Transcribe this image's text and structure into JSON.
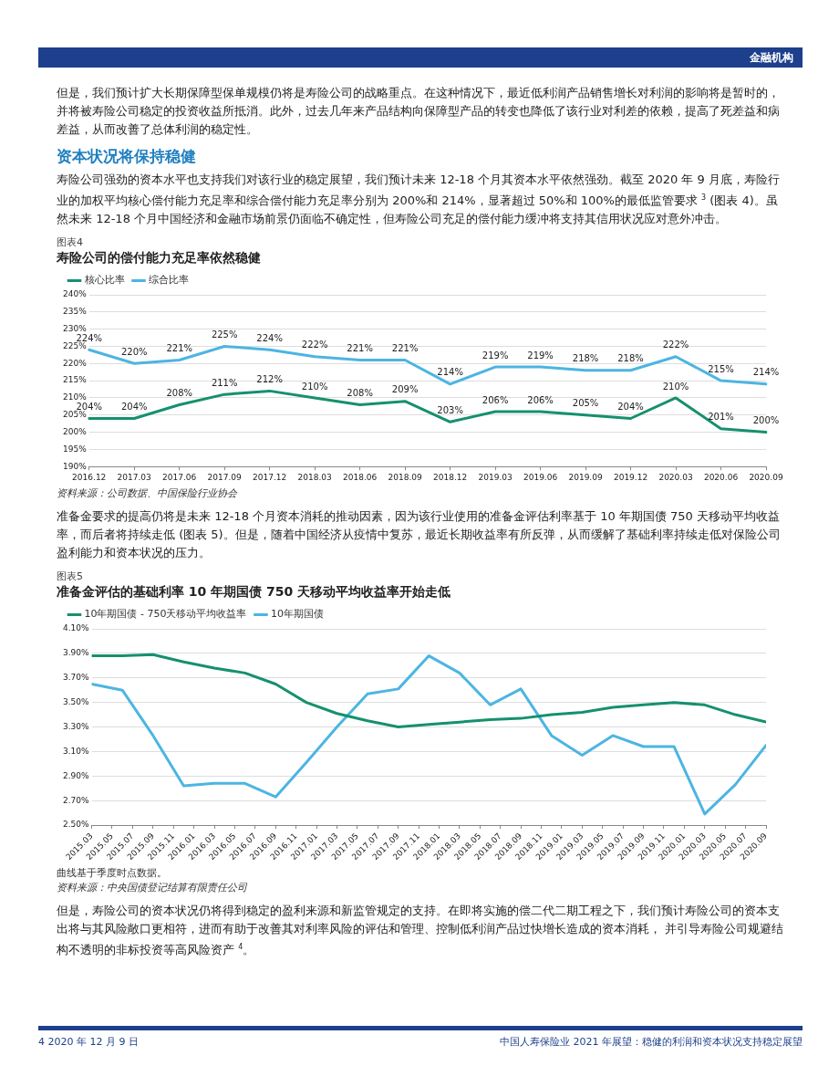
{
  "chart_data": [
    {
      "type": "line",
      "subtitle": "图表4",
      "title": "寿险公司的偿付能力充足率依然稳健",
      "categories": [
        "2016.12",
        "2017.03",
        "2017.06",
        "2017.09",
        "2017.12",
        "2018.03",
        "2018.06",
        "2018.09",
        "2018.12",
        "2019.03",
        "2019.06",
        "2019.09",
        "2019.12",
        "2020.03",
        "2020.06",
        "2020.09"
      ],
      "series": [
        {
          "name": "核心比率",
          "color": "#16906e",
          "values": [
            204,
            204,
            208,
            211,
            212,
            210,
            208,
            209,
            203,
            206,
            206,
            205,
            204,
            210,
            201,
            200
          ],
          "value_labels": [
            "204%",
            "204%",
            "208%",
            "211%",
            "212%",
            "210%",
            "208%",
            "209%",
            "203%",
            "206%",
            "206%",
            "205%",
            "204%",
            "210%",
            "201%",
            "200%"
          ]
        },
        {
          "name": "综合比率",
          "color": "#4cb5e2",
          "values": [
            224,
            220,
            221,
            225,
            224,
            222,
            221,
            221,
            214,
            219,
            219,
            218,
            218,
            222,
            215,
            214
          ],
          "value_labels": [
            "224%",
            "220%",
            "221%",
            "225%",
            "224%",
            "222%",
            "221%",
            "221%",
            "214%",
            "219%",
            "219%",
            "218%",
            "218%",
            "222%",
            "215%",
            "214%"
          ]
        }
      ],
      "ylim": [
        190,
        240
      ],
      "yticks": [
        {
          "value": 190,
          "label": "190%"
        },
        {
          "value": 195,
          "label": "195%"
        },
        {
          "value": 200,
          "label": "200%"
        },
        {
          "value": 205,
          "label": "205%"
        },
        {
          "value": 210,
          "label": "210%"
        },
        {
          "value": 215,
          "label": "215%"
        },
        {
          "value": 220,
          "label": "220%"
        },
        {
          "value": 225,
          "label": "225%"
        },
        {
          "value": 230,
          "label": "230%"
        },
        {
          "value": 235,
          "label": "235%"
        },
        {
          "value": 240,
          "label": "240%"
        }
      ],
      "grid": "y",
      "legend": "top",
      "marker": "none",
      "line_style": "solid",
      "annotations": [
        "金融机构",
        "但是，我们预计扩大长期保障型保单规模仍将是寿险公司的战略重点。在这种情况下，最近低利润产品销售增长对利润的影响将是暂时的，并将被寿险公司稳定的投资收益所抵消。此外，过去几年来产品结构向保障型产品的转变也降低了该行业对利差的依赖，提高了死差益和病差益，从而改善了总体利润的稳定性。",
        "资本状况将保持稳健",
        "寿险公司强劲的资本水平也支持我们对该行业的稳定展望，我们预计未来 12-18 个月其资本水平依然强劲。截至 2020 年 9 月底，寿险行业的加权平均核心偿付能力充足率和综合偿付能力充足率分别为 200%和 214%，显著超过 50%和 100%的最低监管要求 $^{3}$ (图表 4)。虽然未来 12-18 个月中国经济和金融市场前景仍面临不确定性，但寿险公司充足的偿付能力缓冲将支持其信用状况应对意外冲击。",
        "资料来源：公司数据、中国保险行业协会"
      ]
    },
    {
      "type": "line",
      "subtitle": "图表5",
      "title": "准备金评估的基础利率 10 年期国债 750 天移动平均收益率开始走低",
      "x": [
        "2015-03",
        "2015-06",
        "2015-09",
        "2015-12",
        "2016-03",
        "2016-06",
        "2016-09",
        "2016-12",
        "2017-03",
        "2017-06",
        "2017-09",
        "2017-12",
        "2018-03",
        "2018-06",
        "2018-09",
        "2018-12",
        "2019-03",
        "2019-06",
        "2019-09",
        "2019-12",
        "2020-03",
        "2020-06",
        "2020-09"
      ],
      "series": [
        {
          "name": "10年期国债 - 750天移动平均收益率",
          "color": "#16906e",
          "values": [
            3.88,
            3.88,
            3.89,
            3.83,
            3.78,
            3.74,
            3.65,
            3.5,
            3.41,
            3.35,
            3.3,
            3.32,
            3.34,
            3.36,
            3.37,
            3.4,
            3.42,
            3.46,
            3.48,
            3.5,
            3.48,
            3.4,
            3.34
          ]
        },
        {
          "name": "10年期国债",
          "color": "#4cb5e2",
          "values": [
            3.65,
            3.6,
            3.23,
            2.82,
            2.84,
            2.84,
            2.73,
            3.01,
            3.3,
            3.57,
            3.61,
            3.88,
            3.74,
            3.48,
            3.61,
            3.23,
            3.07,
            3.23,
            3.14,
            3.14,
            2.59,
            2.83,
            3.15
          ]
        }
      ],
      "xlim": [
        "2015-03",
        "2020-09"
      ],
      "xticks": [
        {
          "value": "2015-03",
          "label": "2015.03"
        },
        {
          "value": "2015-05",
          "label": "2015.05"
        },
        {
          "value": "2015-07",
          "label": "2015.07"
        },
        {
          "value": "2015-09",
          "label": "2015.09"
        },
        {
          "value": "2015-11",
          "label": "2015.11"
        },
        {
          "value": "2016-01",
          "label": "2016.01"
        },
        {
          "value": "2016-03",
          "label": "2016.03"
        },
        {
          "value": "2016-05",
          "label": "2016.05"
        },
        {
          "value": "2016-07",
          "label": "2016.07"
        },
        {
          "value": "2016-09",
          "label": "2016.09"
        },
        {
          "value": "2016-11",
          "label": "2016.11"
        },
        {
          "value": "2017-01",
          "label": "2017.01"
        },
        {
          "value": "2017-03",
          "label": "2017.03"
        },
        {
          "value": "2017-05",
          "label": "2017.05"
        },
        {
          "value": "2017-07",
          "label": "2017.07"
        },
        {
          "value": "2017-09",
          "label": "2017.09"
        },
        {
          "value": "2017-11",
          "label": "2017.11"
        },
        {
          "value": "2018-01",
          "label": "2018.01"
        },
        {
          "value": "2018-03",
          "label": "2018.03"
        },
        {
          "value": "2018-05",
          "label": "2018.05"
        },
        {
          "value": "2018-07",
          "label": "2018.07"
        },
        {
          "value": "2018-09",
          "label": "2018.09"
        },
        {
          "value": "2018-11",
          "label": "2018.11"
        },
        {
          "value": "2019-01",
          "label": "2019.01"
        },
        {
          "value": "2019-03",
          "label": "2019.03"
        },
        {
          "value": "2019-05",
          "label": "2019.05"
        },
        {
          "value": "2019-07",
          "label": "2019.07"
        },
        {
          "value": "2019-09",
          "label": "2019.09"
        },
        {
          "value": "2019-11",
          "label": "2019.11"
        },
        {
          "value": "2020-01",
          "label": "2020.01"
        },
        {
          "value": "2020-03",
          "label": "2020.03"
        },
        {
          "value": "2020-05",
          "label": "2020.05"
        },
        {
          "value": "2020-07",
          "label": "2020.07"
        },
        {
          "value": "2020-09",
          "label": "2020.09"
        }
      ],
      "ylim": [
        2.5,
        4.1
      ],
      "yticks": [
        {
          "value": 2.5,
          "label": "2.50%"
        },
        {
          "value": 2.7,
          "label": "2.70%"
        },
        {
          "value": 2.9,
          "label": "2.90%"
        },
        {
          "value": 3.1,
          "label": "3.10%"
        },
        {
          "value": 3.3,
          "label": "3.30%"
        },
        {
          "value": 3.5,
          "label": "3.50%"
        },
        {
          "value": 3.7,
          "label": "3.70%"
        },
        {
          "value": 3.9,
          "label": "3.90%"
        },
        {
          "value": 4.1,
          "label": "4.10%"
        }
      ],
      "grid": "y",
      "legend": "top",
      "marker": "none",
      "line_style": "solid",
      "annotations": [
        "准备金要求的提高仍将是未来 12-18 个月资本消耗的推动因素，因为该行业使用的准备金评估利率基于 10 年期国债 750 天移动平均收益率，而后者将持续走低 (图表 5)。但是，随着中国经济从疫情中复苏，最近长期收益率有所反弹，从而缓解了基础利率持续走低对保险公司盈利能力和资本状况的压力。",
        "曲线基于季度时点数据。",
        "资料来源：中央国债登记结算有限责任公司",
        "但是，寿险公司的资本状况仍将得到稳定的盈利来源和新监管规定的支持。在即将实施的偿二代二期工程之下，我们预计寿险公司的资本支出将与其风险敞口更相符，进而有助于改善其对利率风险的评估和管理、控制低利润产品过快增长造成的资本消耗， 并引导寿险公司规避结构不透明的非标投资等高风险资产 $^{4}$。",
        "4 2020 年 12 月 9 日",
        "中国人寿保险业 2021 年展望：稳健的利润和资本状况支持稳定展望"
      ]
    }
  ]
}
